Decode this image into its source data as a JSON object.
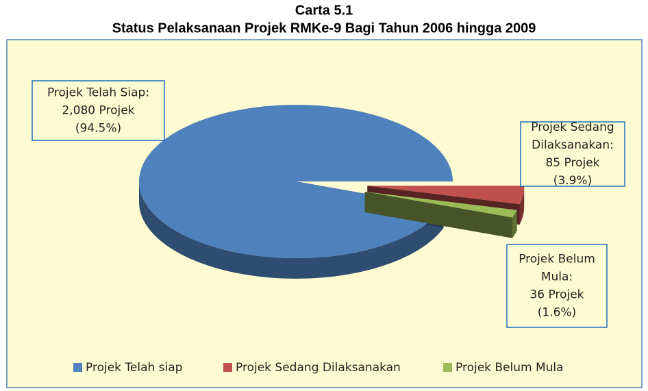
{
  "chart_data": {
    "type": "pie",
    "title": "Carta 5.1",
    "subtitle": "Status Pelaksanaan Projek RMKe-9 Bagi Tahun 2006 hingga 2009",
    "categories": [
      "Projek Telah siap",
      "Projek Sedang Dilaksanakan",
      "Projek Belum Mula"
    ],
    "values": [
      2080,
      85,
      36
    ],
    "value_labels": [
      [
        "Projek Telah Siap:",
        "2,080 Projek",
        "(94.5%)"
      ],
      [
        "Projek Sedang",
        "Dilaksanakan:",
        "85 Projek",
        "(3.9%)"
      ],
      [
        "Projek Belum",
        "Mula:",
        "36 Projek",
        "(1.6%)"
      ]
    ],
    "colors": [
      "#4f81bd",
      "#c0504d",
      "#9bbb59"
    ],
    "legend": "bottom"
  }
}
